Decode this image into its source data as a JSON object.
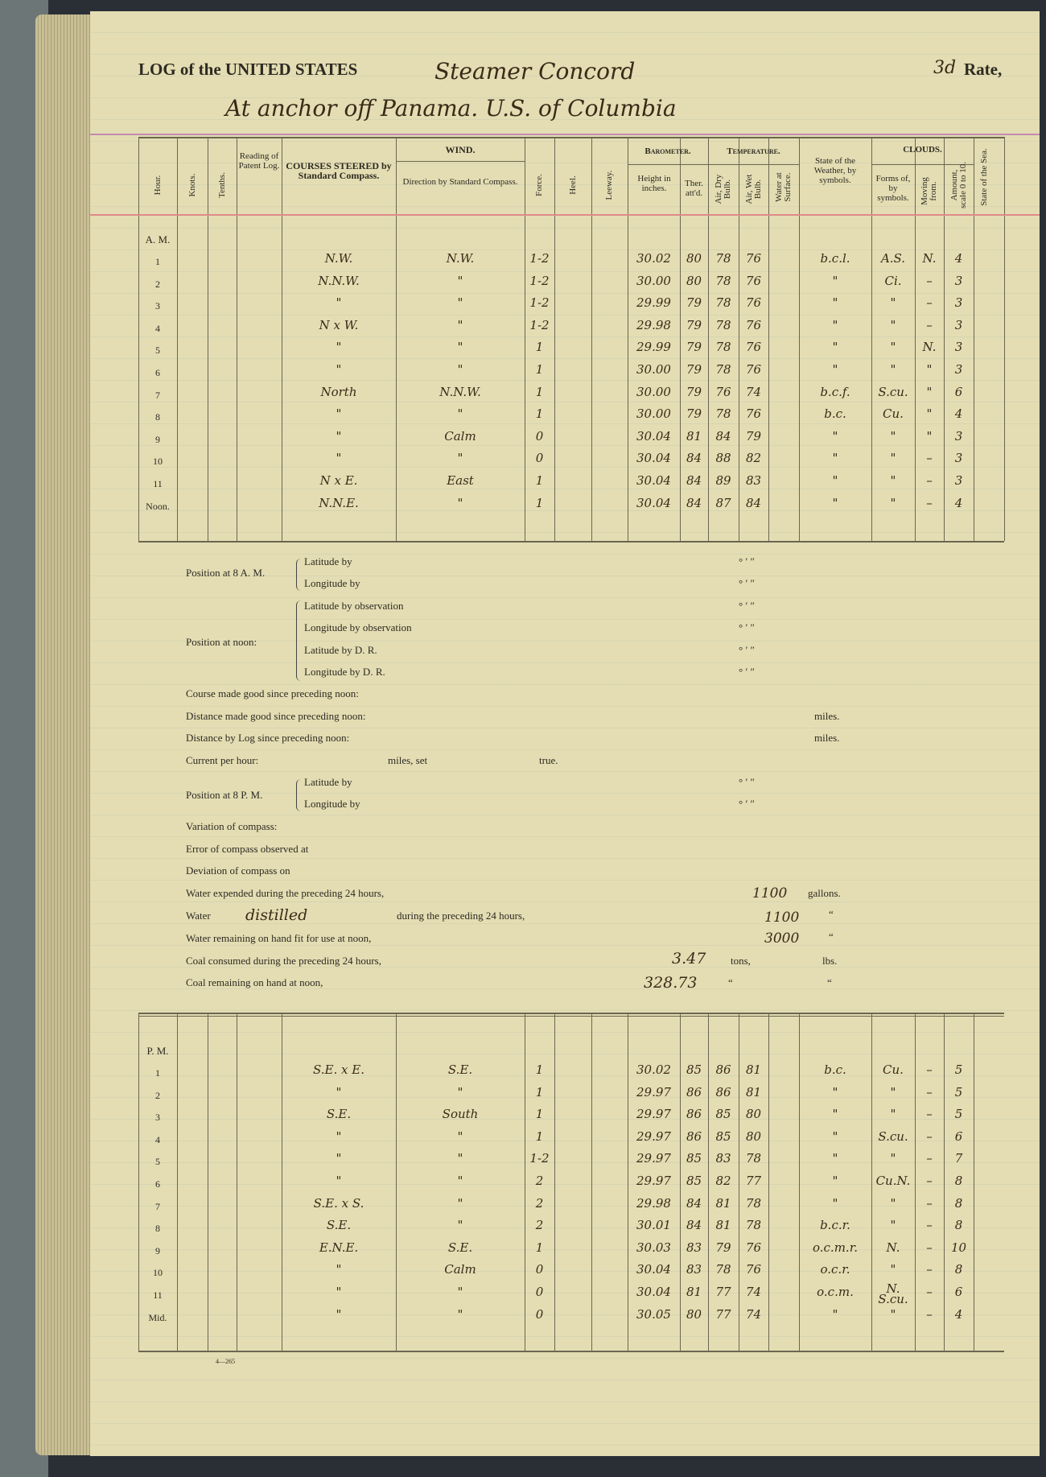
{
  "header": {
    "printed_title": "LOG of the UNITED STATES",
    "vessel": "Steamer Concord",
    "rate_value": "3d",
    "rate_label": "Rate,",
    "location": "At anchor off Panama. U.S. of Columbia"
  },
  "columns": {
    "hour": "Hour.",
    "knots": "Knots.",
    "tenths": "Tenths.",
    "patent_log": "Reading of Patent Log.",
    "courses": "COURSES STEERED by Standard Compass.",
    "wind": "WIND.",
    "wind_direction": "Direction by Standard Compass.",
    "force": "Force.",
    "heel": "Heel.",
    "leeway": "Leeway.",
    "barometer": "Barometer.",
    "height": "Height in inches.",
    "ther": "Ther. att'd.",
    "temperature": "Temperature.",
    "dry": "Air, Dry Bulb.",
    "wet": "Air, Wet Bulb.",
    "water": "Water at Surface.",
    "weather": "State of the Weather, by symbols.",
    "clouds": "CLOUDS.",
    "forms": "Forms of, by symbols.",
    "moving": "Moving from.",
    "amount": "Amount, scale 0 to 10.",
    "sea": "State of the Sea."
  },
  "am": {
    "label": "A. M.",
    "rows": [
      {
        "hour": "1",
        "course": "N.W.",
        "wind": "N.W.",
        "force": "1-2",
        "height": "30.02",
        "ther": "80",
        "dry": "78",
        "wet": "76",
        "weather": "b.c.l.",
        "forms": "A.S.",
        "moving": "N.",
        "amount": "4"
      },
      {
        "hour": "2",
        "course": "N.N.W.",
        "wind": "\"",
        "force": "1-2",
        "height": "30.00",
        "ther": "80",
        "dry": "78",
        "wet": "76",
        "weather": "\"",
        "forms": "Ci.",
        "moving": "–",
        "amount": "3"
      },
      {
        "hour": "3",
        "course": "\"",
        "wind": "\"",
        "force": "1-2",
        "height": "29.99",
        "ther": "79",
        "dry": "78",
        "wet": "76",
        "weather": "\"",
        "forms": "\"",
        "moving": "–",
        "amount": "3"
      },
      {
        "hour": "4",
        "course": "N x W.",
        "wind": "\"",
        "force": "1-2",
        "height": "29.98",
        "ther": "79",
        "dry": "78",
        "wet": "76",
        "weather": "\"",
        "forms": "\"",
        "moving": "–",
        "amount": "3"
      },
      {
        "hour": "5",
        "course": "\"",
        "wind": "\"",
        "force": "1",
        "height": "29.99",
        "ther": "79",
        "dry": "78",
        "wet": "76",
        "weather": "\"",
        "forms": "\"",
        "moving": "N.",
        "amount": "3"
      },
      {
        "hour": "6",
        "course": "\"",
        "wind": "\"",
        "force": "1",
        "height": "30.00",
        "ther": "79",
        "dry": "78",
        "wet": "76",
        "weather": "\"",
        "forms": "\"",
        "moving": "\"",
        "amount": "3"
      },
      {
        "hour": "7",
        "course": "North",
        "wind": "N.N.W.",
        "force": "1",
        "height": "30.00",
        "ther": "79",
        "dry": "76",
        "wet": "74",
        "weather": "b.c.f.",
        "forms": "S.cu.",
        "moving": "\"",
        "amount": "6"
      },
      {
        "hour": "8",
        "course": "\"",
        "wind": "\"",
        "force": "1",
        "height": "30.00",
        "ther": "79",
        "dry": "78",
        "wet": "76",
        "weather": "b.c.",
        "forms": "Cu.",
        "moving": "\"",
        "amount": "4"
      },
      {
        "hour": "9",
        "course": "\"",
        "wind": "Calm",
        "force": "0",
        "height": "30.04",
        "ther": "81",
        "dry": "84",
        "wet": "79",
        "weather": "\"",
        "forms": "\"",
        "moving": "\"",
        "amount": "3"
      },
      {
        "hour": "10",
        "course": "\"",
        "wind": "\"",
        "force": "0",
        "height": "30.04",
        "ther": "84",
        "dry": "88",
        "wet": "82",
        "weather": "\"",
        "forms": "\"",
        "moving": "–",
        "amount": "3"
      },
      {
        "hour": "11",
        "course": "N x E.",
        "wind": "East",
        "force": "1",
        "height": "30.04",
        "ther": "84",
        "dry": "89",
        "wet": "83",
        "weather": "\"",
        "forms": "\"",
        "moving": "–",
        "amount": "3"
      },
      {
        "hour": "Noon.",
        "course": "N.N.E.",
        "wind": "\"",
        "force": "1",
        "height": "30.04",
        "ther": "84",
        "dry": "87",
        "wet": "84",
        "weather": "\"",
        "forms": "\"",
        "moving": "–",
        "amount": "4"
      }
    ]
  },
  "positions": {
    "pos8am": "Position at 8 A. M.",
    "pos_noon": "Position at noon:",
    "pos8pm": "Position at 8 P. M.",
    "lat_by": "Latitude by",
    "lon_by": "Longitude by",
    "lat_obs": "Latitude by observation",
    "lon_obs": "Longitude by observation",
    "lat_dr": "Latitude by D. R.",
    "lon_dr": "Longitude by D. R.",
    "dms": "°    ′    ″"
  },
  "form_lines": {
    "course_made": "Course made good since preceding noon:",
    "distance_made": "Distance made good since preceding noon:",
    "distance_log": "Distance by Log since preceding noon:",
    "miles": "miles.",
    "current": "Current per hour:",
    "miles_set": "miles, set",
    "true": "true.",
    "variation": "Variation of compass:",
    "error": "Error of compass observed at",
    "deviation": "Deviation of compass on",
    "water_expended": "Water expended during the preceding 24 hours,",
    "water_expended_value": "1100",
    "gallons": "gallons.",
    "water": "Water",
    "water_verb": "distilled",
    "water_during": "during the preceding 24 hours,",
    "water_distilled_value": "1100",
    "water_remaining": "Water remaining on hand fit for use at noon,",
    "water_remaining_value": "3000",
    "ditto": "“",
    "coal_consumed": "Coal consumed during the preceding 24 hours,",
    "coal_consumed_value": "3.47",
    "tons": "tons,",
    "lbs": "lbs.",
    "coal_remaining": "Coal remaining on hand at noon,",
    "coal_remaining_value": "328.73"
  },
  "pm": {
    "label": "P. M.",
    "rows": [
      {
        "hour": "1",
        "course": "S.E. x E.",
        "wind": "S.E.",
        "force": "1",
        "height": "30.02",
        "ther": "85",
        "dry": "86",
        "wet": "81",
        "weather": "b.c.",
        "forms": "Cu.",
        "moving": "–",
        "amount": "5"
      },
      {
        "hour": "2",
        "course": "\"",
        "wind": "\"",
        "force": "1",
        "height": "29.97",
        "ther": "86",
        "dry": "86",
        "wet": "81",
        "weather": "\"",
        "forms": "\"",
        "moving": "–",
        "amount": "5"
      },
      {
        "hour": "3",
        "course": "S.E.",
        "wind": "South",
        "force": "1",
        "height": "29.97",
        "ther": "86",
        "dry": "85",
        "wet": "80",
        "weather": "\"",
        "forms": "\"",
        "moving": "–",
        "amount": "5"
      },
      {
        "hour": "4",
        "course": "\"",
        "wind": "\"",
        "force": "1",
        "height": "29.97",
        "ther": "86",
        "dry": "85",
        "wet": "80",
        "weather": "\"",
        "forms": "S.cu.",
        "moving": "–",
        "amount": "6"
      },
      {
        "hour": "5",
        "course": "\"",
        "wind": "\"",
        "force": "1-2",
        "height": "29.97",
        "ther": "85",
        "dry": "83",
        "wet": "78",
        "weather": "\"",
        "forms": "\"",
        "moving": "–",
        "amount": "7"
      },
      {
        "hour": "6",
        "course": "\"",
        "wind": "\"",
        "force": "2",
        "height": "29.97",
        "ther": "85",
        "dry": "82",
        "wet": "77",
        "weather": "\"",
        "forms": "Cu.N.",
        "moving": "–",
        "amount": "8"
      },
      {
        "hour": "7",
        "course": "S.E. x S.",
        "wind": "\"",
        "force": "2",
        "height": "29.98",
        "ther": "84",
        "dry": "81",
        "wet": "78",
        "weather": "\"",
        "forms": "\"",
        "moving": "–",
        "amount": "8"
      },
      {
        "hour": "8",
        "course": "S.E.",
        "wind": "\"",
        "force": "2",
        "height": "30.01",
        "ther": "84",
        "dry": "81",
        "wet": "78",
        "weather": "b.c.r.",
        "forms": "\"",
        "moving": "–",
        "amount": "8"
      },
      {
        "hour": "9",
        "course": "E.N.E.",
        "wind": "S.E.",
        "force": "1",
        "height": "30.03",
        "ther": "83",
        "dry": "79",
        "wet": "76",
        "weather": "o.c.m.r.",
        "forms": "N.",
        "moving": "–",
        "amount": "10"
      },
      {
        "hour": "10",
        "course": "\"",
        "wind": "Calm",
        "force": "0",
        "height": "30.04",
        "ther": "83",
        "dry": "78",
        "wet": "76",
        "weather": "o.c.r.",
        "forms": "\"",
        "moving": "–",
        "amount": "8"
      },
      {
        "hour": "11",
        "course": "\"",
        "wind": "\"",
        "force": "0",
        "height": "30.04",
        "ther": "81",
        "dry": "77",
        "wet": "74",
        "weather": "o.c.m.",
        "forms": "N. S.cu.",
        "moving": "–",
        "amount": "6"
      },
      {
        "hour": "Mid.",
        "course": "\"",
        "wind": "\"",
        "force": "0",
        "height": "30.05",
        "ther": "80",
        "dry": "77",
        "wet": "74",
        "weather": "\"",
        "forms": "\"",
        "moving": "–",
        "amount": "4"
      }
    ]
  },
  "footer_code": "4—265",
  "colors": {
    "paper": "#e4ddb3",
    "ink": "#3a2a18",
    "rule_pink": "#e08a8a"
  }
}
